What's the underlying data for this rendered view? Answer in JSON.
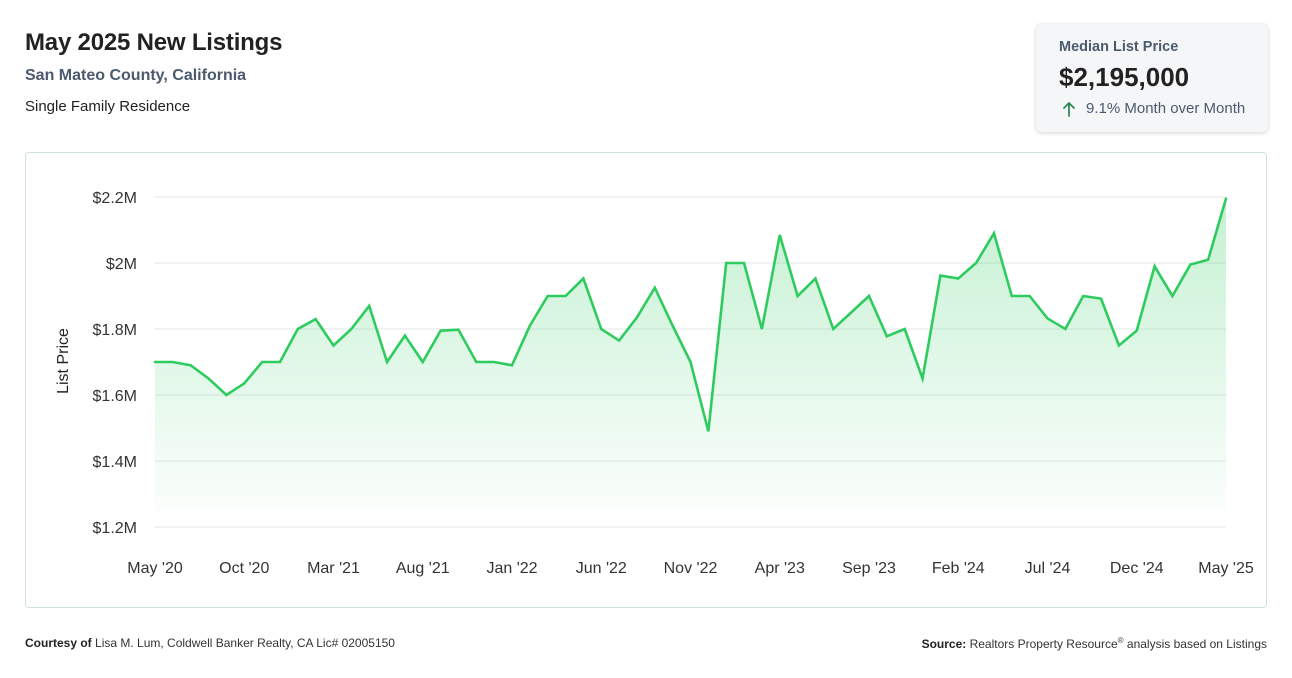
{
  "header": {
    "title": "May 2025 New Listings",
    "subtitle": "San Mateo County, California",
    "property_type": "Single Family Residence"
  },
  "stat": {
    "label": "Median List Price",
    "value": "$2,195,000",
    "change": "9.1% Month over Month",
    "arrow_icon": "arrow-up-icon",
    "arrow_color": "#2e8b57"
  },
  "footer": {
    "courtesy_label": "Courtesy of",
    "courtesy_text": "Lisa M. Lum, Coldwell Banker Realty, CA Lic# 02005150",
    "source_label": "Source:",
    "source_text_1": "Realtors Property Resource",
    "source_mark": "®",
    "source_text_2": "analysis based on Listings"
  },
  "chart_data": {
    "type": "area",
    "title": "",
    "xlabel": "",
    "ylabel": "List Price",
    "ylim": [
      1.2,
      2.2
    ],
    "y_unit": "millions USD",
    "y_ticks": [
      {
        "value": 2.2,
        "label": "$2.2M"
      },
      {
        "value": 2.0,
        "label": "$2M"
      },
      {
        "value": 1.8,
        "label": "$1.8M"
      },
      {
        "value": 1.6,
        "label": "$1.6M"
      },
      {
        "value": 1.4,
        "label": "$1.4M"
      },
      {
        "value": 1.2,
        "label": "$1.2M"
      }
    ],
    "x_ticks": [
      {
        "index": 0,
        "label": "May '20"
      },
      {
        "index": 5,
        "label": "Oct '20"
      },
      {
        "index": 10,
        "label": "Mar '21"
      },
      {
        "index": 15,
        "label": "Aug '21"
      },
      {
        "index": 20,
        "label": "Jan '22"
      },
      {
        "index": 25,
        "label": "Jun '22"
      },
      {
        "index": 30,
        "label": "Nov '22"
      },
      {
        "index": 35,
        "label": "Apr '23"
      },
      {
        "index": 40,
        "label": "Sep '23"
      },
      {
        "index": 45,
        "label": "Feb '24"
      },
      {
        "index": 50,
        "label": "Jul '24"
      },
      {
        "index": 55,
        "label": "Dec '24"
      },
      {
        "index": 60,
        "label": "May '25"
      }
    ],
    "grid": true,
    "legend": "none",
    "line_color": "#2ecc5f",
    "fill_color": "#2ecc5f",
    "series": [
      {
        "values": [
          1.7,
          1.7,
          1.69,
          1.65,
          1.6,
          1.635,
          1.7,
          1.7,
          1.8,
          1.83,
          1.75,
          1.8,
          1.87,
          1.7,
          1.78,
          1.7,
          1.795,
          1.798,
          1.7,
          1.7,
          1.69,
          1.81,
          1.9,
          1.9,
          1.953,
          1.8,
          1.765,
          1.835,
          1.925,
          1.81,
          1.7,
          1.49,
          2.0,
          2.0,
          1.8,
          2.085,
          1.9,
          1.953,
          1.8,
          1.85,
          1.9,
          1.778,
          1.8,
          1.65,
          1.962,
          1.953,
          2.0,
          2.09,
          1.9,
          1.9,
          1.832,
          1.8,
          1.9,
          1.892,
          1.75,
          1.795,
          1.99,
          1.9,
          1.995,
          2.01,
          2.195
        ]
      }
    ]
  }
}
